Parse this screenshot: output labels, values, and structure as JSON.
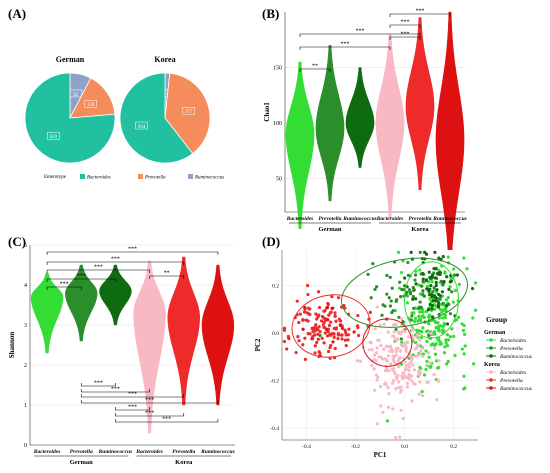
{
  "panels": {
    "a": {
      "label": "(A)"
    },
    "b": {
      "label": "(B)"
    },
    "c": {
      "label": "(C)"
    },
    "d": {
      "label": "(D)"
    }
  },
  "colors": {
    "bacteroides": "#20c0a0",
    "prevotella": "#f48c5c",
    "ruminococcus": "#8ea2c8",
    "german_bact": "#33dd33",
    "german_prev": "#2a8f2a",
    "german_rumi": "#0f6b0f",
    "korea_bact": "#f8b8c4",
    "korea_prev": "#ee2a2a",
    "korea_rumi": "#dd1111"
  },
  "chart_data": [
    {
      "type": "pie",
      "panel": "A",
      "title": "German",
      "slices": [
        {
          "name": "Bacteroides",
          "value": 620,
          "label": "620"
        },
        {
          "name": "Prevotella",
          "value": 130,
          "label": "130"
        },
        {
          "name": "Ruminococcus",
          "value": 62,
          "label": "62"
        }
      ]
    },
    {
      "type": "pie",
      "panel": "A",
      "title": "Korea",
      "slices": [
        {
          "name": "Bacteroides",
          "value": 604,
          "label": "604"
        },
        {
          "name": "Prevotella",
          "value": 377,
          "label": "377"
        },
        {
          "name": "Ruminococcus",
          "value": 17,
          "label": "17"
        }
      ],
      "legend": {
        "title": "Enterotype",
        "entries": [
          "Bacteroides",
          "Prevotella",
          "Ruminococcus"
        ],
        "placement": "bottom"
      }
    },
    {
      "type": "violin",
      "panel": "B",
      "ylabel": "Chao1",
      "ylim": [
        20,
        200
      ],
      "yticks": [
        50,
        100,
        150
      ],
      "groups": [
        {
          "cat": "Bacteroides",
          "country": "German",
          "median": 90,
          "low": 5,
          "high": 155,
          "color_key": "german_bact"
        },
        {
          "cat": "Prevotella",
          "country": "German",
          "median": 95,
          "low": 30,
          "high": 170,
          "color_key": "german_prev"
        },
        {
          "cat": "Ruminococcus",
          "country": "German",
          "median": 100,
          "low": 60,
          "high": 150,
          "color_key": "german_rumi"
        },
        {
          "cat": "Bacteroides",
          "country": "Korea",
          "median": 100,
          "low": 15,
          "high": 180,
          "color_key": "korea_bact"
        },
        {
          "cat": "Prevotella",
          "country": "Korea",
          "median": 115,
          "low": 40,
          "high": 195,
          "color_key": "korea_prev"
        },
        {
          "cat": "Ruminococcus",
          "country": "Korea",
          "median": 85,
          "low": -35,
          "high": 200,
          "color_key": "korea_rumi"
        }
      ],
      "country_labels": [
        "German",
        "Korea"
      ],
      "brackets": [
        {
          "from": 0,
          "to": 1,
          "label": "**"
        },
        {
          "from": 0,
          "to": 3,
          "label": "***"
        },
        {
          "from": 0,
          "to": 4,
          "label": "***"
        },
        {
          "from": 3,
          "to": 4,
          "label": "***"
        },
        {
          "from": 4,
          "to": 4.0,
          "label": "***"
        },
        {
          "from": 3,
          "to": 5,
          "label": "***"
        }
      ]
    },
    {
      "type": "violin",
      "panel": "C",
      "ylabel": "Shannon",
      "ylim": [
        0,
        5
      ],
      "yticks": [
        0,
        1,
        2,
        3,
        4,
        5
      ],
      "groups": [
        {
          "cat": "Bacteroides",
          "country": "German",
          "median": 3.7,
          "low": 2.3,
          "high": 4.3,
          "color_key": "german_bact"
        },
        {
          "cat": "Prevotella",
          "country": "German",
          "median": 3.8,
          "low": 2.6,
          "high": 4.5,
          "color_key": "german_prev"
        },
        {
          "cat": "Ruminococcus",
          "country": "German",
          "median": 3.85,
          "low": 3.0,
          "high": 4.5,
          "color_key": "german_rumi"
        },
        {
          "cat": "Bacteroides",
          "country": "Korea",
          "median": 3.3,
          "low": 0.3,
          "high": 4.6,
          "color_key": "korea_bact"
        },
        {
          "cat": "Prevotella",
          "country": "Korea",
          "median": 3.2,
          "low": 1.0,
          "high": 4.7,
          "color_key": "korea_prev"
        },
        {
          "cat": "Ruminococcus",
          "country": "Korea",
          "median": 3.0,
          "low": 1.0,
          "high": 4.5,
          "color_key": "korea_rumi"
        }
      ],
      "country_labels": [
        "German",
        "Korea"
      ],
      "brackets_top": [
        {
          "from": 0,
          "to": 5,
          "label": "***"
        },
        {
          "from": 0,
          "to": 4,
          "label": "***"
        },
        {
          "from": 0,
          "to": 3,
          "label": "***"
        },
        {
          "from": 0,
          "to": 2,
          "label": "***"
        },
        {
          "from": 0,
          "to": 1,
          "label": "***"
        },
        {
          "from": 3,
          "to": 4,
          "label": "**"
        }
      ],
      "brackets_bottom": [
        {
          "from": 1,
          "to": 2,
          "label": "***"
        },
        {
          "from": 1,
          "to": 3,
          "label": "***"
        },
        {
          "from": 1,
          "to": 4,
          "label": "***"
        },
        {
          "from": 1,
          "to": 5,
          "label": "***"
        },
        {
          "from": 2,
          "to": 3,
          "label": "***"
        },
        {
          "from": 2,
          "to": 4,
          "label": "***"
        },
        {
          "from": 2,
          "to": 5,
          "label": "***"
        }
      ]
    },
    {
      "type": "scatter",
      "panel": "D",
      "xlabel": "PC1",
      "ylabel": "PC2",
      "xlim": [
        -0.5,
        0.3
      ],
      "ylim": [
        -0.45,
        0.35
      ],
      "xticks": [
        -0.4,
        -0.2,
        0.0,
        0.2
      ],
      "yticks": [
        -0.4,
        -0.2,
        0.0,
        0.2
      ],
      "legend": {
        "title": "Group",
        "placement": "right",
        "groups": [
          {
            "header": "German",
            "items": [
              {
                "name": "Bacteroides",
                "color_key": "german_bact"
              },
              {
                "name": "Prevotella",
                "color_key": "german_prev"
              },
              {
                "name": "Ruminococcus",
                "color_key": "german_rumi"
              }
            ]
          },
          {
            "header": "Korea",
            "items": [
              {
                "name": "Bacteroides",
                "color_key": "korea_bact"
              },
              {
                "name": "Prevotella",
                "color_key": "korea_prev"
              },
              {
                "name": "Ruminococcus",
                "color_key": "korea_rumi"
              }
            ]
          }
        ]
      },
      "clusters": [
        {
          "color_key": "german_bact",
          "cx": 0.12,
          "cy": 0.05,
          "sx": 0.07,
          "sy": 0.12,
          "n": 220
        },
        {
          "color_key": "german_prev",
          "cx": 0.04,
          "cy": 0.16,
          "sx": 0.09,
          "sy": 0.07,
          "n": 90
        },
        {
          "color_key": "german_rumi",
          "cx": 0.12,
          "cy": 0.2,
          "sx": 0.05,
          "sy": 0.07,
          "n": 70
        },
        {
          "color_key": "korea_bact",
          "cx": -0.02,
          "cy": -0.12,
          "sx": 0.07,
          "sy": 0.1,
          "n": 200
        },
        {
          "color_key": "korea_prev",
          "cx": -0.33,
          "cy": 0.03,
          "sx": 0.07,
          "sy": 0.06,
          "n": 140
        },
        {
          "color_key": "korea_rumi",
          "cx": -0.33,
          "cy": 0.03,
          "sx": 0.05,
          "sy": 0.05,
          "n": 10
        }
      ],
      "ellipses": [
        {
          "color_key": "german_prev",
          "cx": 0.0,
          "cy": 0.17,
          "rx": 0.26,
          "ry": 0.14,
          "rot": -10
        },
        {
          "color_key": "german_bact",
          "cx": 0.11,
          "cy": 0.14,
          "rx": 0.11,
          "ry": 0.16,
          "rot": 0
        },
        {
          "color_key": "korea_prev",
          "cx": -0.3,
          "cy": 0.03,
          "rx": 0.16,
          "ry": 0.13,
          "rot": -10
        },
        {
          "color_key": "korea_rumi",
          "cx": -0.07,
          "cy": -0.04,
          "rx": 0.1,
          "ry": 0.1,
          "rot": 0
        }
      ]
    }
  ]
}
